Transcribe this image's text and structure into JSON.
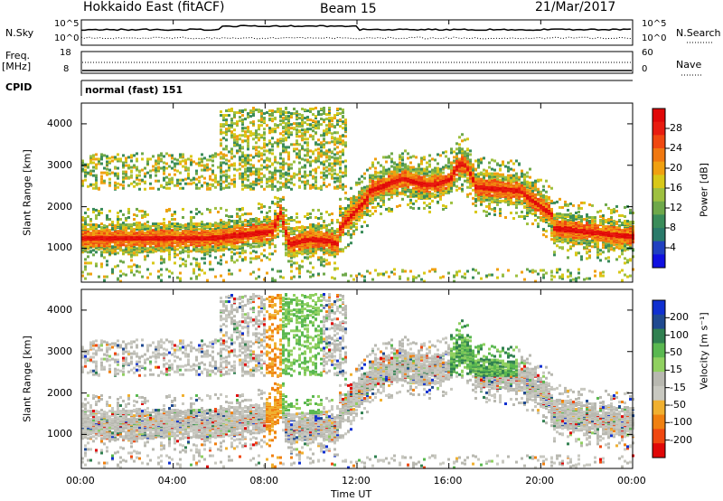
{
  "header": {
    "station": "Hokkaido East (fitACF)",
    "beam": "Beam 15",
    "date": "21/Mar/2017"
  },
  "top_panels": {
    "nsky_label": "N.Sky",
    "nsearch_label": "N.Search",
    "n_ticks": [
      "10^5",
      "10^0"
    ],
    "freq_label": "Freq.",
    "freq_unit": "[MHz]",
    "freq_ticks": [
      "18",
      "8"
    ],
    "nave_label": "Nave",
    "nave_ticks": [
      "60",
      "0"
    ],
    "cpid_label": "CPID",
    "cpid_text": "normal (fast) 151"
  },
  "chart_data": [
    {
      "type": "heatmap",
      "name": "power",
      "ylabel": "Slant Range [km]",
      "xlabel": "",
      "ylim": [
        180,
        4500
      ],
      "yticks": [
        1000,
        2000,
        3000,
        4000
      ],
      "colorbar_label": "Power [dB]",
      "colorbar_ticks": [
        "28",
        "24",
        "20",
        "16",
        "12",
        "8",
        "4"
      ],
      "colors": [
        "#1010e0",
        "#2040c0",
        "#2a7a6a",
        "#3a8c5a",
        "#6ea84a",
        "#9ec040",
        "#d8c818",
        "#f0a010",
        "#f07810",
        "#f04810",
        "#e81c10",
        "#e00808"
      ]
    },
    {
      "type": "heatmap",
      "name": "velocity",
      "ylabel": "Slant Range [km]",
      "xlabel": "Time UT",
      "ylim": [
        180,
        4500
      ],
      "yticks": [
        1000,
        2000,
        3000,
        4000
      ],
      "xticks": [
        "00:00",
        "04:00",
        "08:00",
        "12:00",
        "16:00",
        "20:00",
        "00:00"
      ],
      "colorbar_label": "Velocity [m s⁻¹]",
      "colorbar_ticks": [
        "200",
        "100",
        "50",
        "15",
        "-15",
        "-50",
        "-100",
        "-200"
      ],
      "colors": [
        "#e00808",
        "#f04810",
        "#f08010",
        "#f0b030",
        "#c8c8c0",
        "#b8b8b0",
        "#90d060",
        "#5ab850",
        "#308050",
        "#204a90",
        "#1030d0"
      ]
    }
  ]
}
